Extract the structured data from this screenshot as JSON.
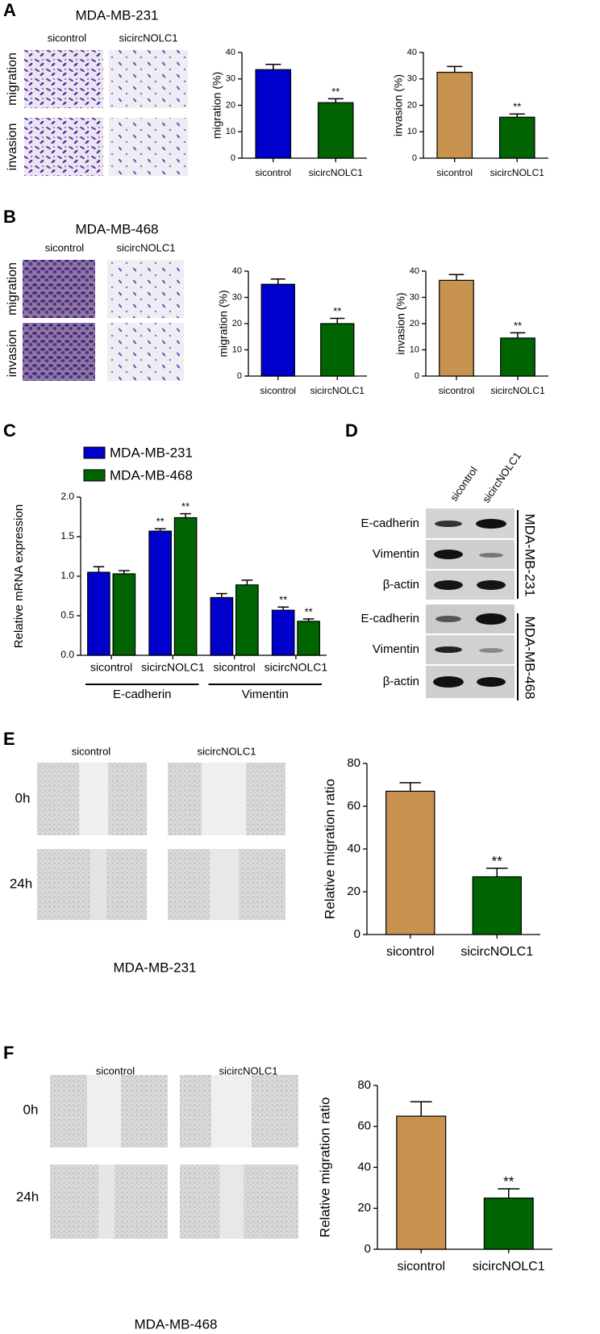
{
  "panel_labels": [
    "A",
    "B",
    "C",
    "D",
    "E",
    "F"
  ],
  "panel_a": {
    "title": "MDA-MB-231",
    "columns": [
      "sicontrol",
      "sicircNOLC1"
    ],
    "rows": [
      "migration",
      "invasion"
    ]
  },
  "panel_b": {
    "title": "MDA-MB-468",
    "columns": [
      "sicontrol",
      "sicircNOLC1"
    ],
    "rows": [
      "migration",
      "invasion"
    ]
  },
  "panel_d": {
    "lanes": [
      "sicontrol",
      "sicircNOLC1"
    ],
    "blots": [
      "E-cadherin",
      "Vimentin",
      "β-actin",
      "E-cadherin",
      "Vimentin",
      "β-actin"
    ],
    "cell_lines": [
      "MDA-MB-231",
      "MDA-MB-468"
    ]
  },
  "panel_e": {
    "columns": [
      "sicontrol",
      "sicircNOLC1"
    ],
    "rows": [
      "0h",
      "24h"
    ],
    "caption": "MDA-MB-231"
  },
  "panel_f": {
    "columns": [
      "sicontrol",
      "sicircNOLC1"
    ],
    "rows": [
      "0h",
      "24h"
    ],
    "caption": "MDA-MB-468"
  },
  "chart_data": [
    {
      "type": "bar",
      "y_label": "migration (%)",
      "categories": [
        "sicontrol",
        "sicircNOLC1"
      ],
      "values": [
        33.5,
        21
      ],
      "errors": [
        2,
        1.5
      ],
      "colors": [
        "#0000cc",
        "#006400"
      ],
      "significance": [
        null,
        "**"
      ],
      "ylim": [
        0,
        40
      ],
      "yticks": [
        0,
        10,
        20,
        30,
        40
      ]
    },
    {
      "type": "bar",
      "y_label": "invasion (%)",
      "categories": [
        "sicontrol",
        "sicircNOLC1"
      ],
      "values": [
        32.5,
        15.5
      ],
      "errors": [
        2.2,
        1.2
      ],
      "colors": [
        "#c8924f",
        "#006400"
      ],
      "significance": [
        null,
        "**"
      ],
      "ylim": [
        0,
        40
      ],
      "yticks": [
        0,
        10,
        20,
        30,
        40
      ]
    },
    {
      "type": "bar",
      "y_label": "migration (%)",
      "categories": [
        "sicontrol",
        "sicircNOLC1"
      ],
      "values": [
        35,
        20
      ],
      "errors": [
        2,
        2
      ],
      "colors": [
        "#0000cc",
        "#006400"
      ],
      "significance": [
        null,
        "**"
      ],
      "ylim": [
        0,
        40
      ],
      "yticks": [
        0,
        10,
        20,
        30,
        40
      ]
    },
    {
      "type": "bar",
      "y_label": "invasion (%)",
      "categories": [
        "sicontrol",
        "sicircNOLC1"
      ],
      "values": [
        36.5,
        14.5
      ],
      "errors": [
        2.2,
        2
      ],
      "colors": [
        "#c8924f",
        "#006400"
      ],
      "significance": [
        null,
        "**"
      ],
      "ylim": [
        0,
        40
      ],
      "yticks": [
        0,
        10,
        20,
        30,
        40
      ]
    },
    {
      "type": "grouped_bar",
      "y_label": "Relative mRNA expression",
      "categories": [
        "sicontrol",
        "sicircNOLC1",
        "sicontrol",
        "sicircNOLC1"
      ],
      "groups": [
        "E-cadherin",
        "Vimentin"
      ],
      "series": [
        {
          "name": "MDA-MB-231",
          "color": "#0000cc",
          "values": [
            1.05,
            1.57,
            0.73,
            0.57
          ],
          "errors": [
            0.07,
            0.03,
            0.05,
            0.04
          ],
          "significance": [
            null,
            "**",
            null,
            "**"
          ]
        },
        {
          "name": "MDA-MB-468",
          "color": "#006400",
          "values": [
            1.03,
            1.74,
            0.89,
            0.43
          ],
          "errors": [
            0.04,
            0.05,
            0.06,
            0.03
          ],
          "significance": [
            null,
            "**",
            null,
            "**"
          ]
        }
      ],
      "ylim": [
        0,
        2.0
      ],
      "yticks": [
        {
          "value": 0,
          "label": "0.0"
        },
        {
          "value": 0.5,
          "label": "0.5"
        },
        {
          "value": 1,
          "label": "1.0"
        },
        {
          "value": 1.5,
          "label": "1.5"
        },
        {
          "value": 2,
          "label": "2.0"
        }
      ]
    },
    {
      "type": "bar",
      "y_label": "Relative migration ratio",
      "categories": [
        "sicontrol",
        "sicircNOLC1"
      ],
      "values": [
        67,
        27
      ],
      "errors": [
        4,
        4
      ],
      "colors": [
        "#c8924f",
        "#006400"
      ],
      "significance": [
        null,
        "**"
      ],
      "ylim": [
        0,
        80
      ],
      "yticks": [
        0,
        20,
        40,
        60,
        80
      ]
    },
    {
      "type": "bar",
      "y_label": "Relative migration ratio",
      "categories": [
        "sicontrol",
        "sicircNOLC1"
      ],
      "values": [
        65,
        25
      ],
      "errors": [
        7,
        4.5
      ],
      "colors": [
        "#c8924f",
        "#006400"
      ],
      "significance": [
        null,
        "**"
      ],
      "ylim": [
        0,
        80
      ],
      "yticks": [
        0,
        20,
        40,
        60,
        80
      ]
    }
  ]
}
